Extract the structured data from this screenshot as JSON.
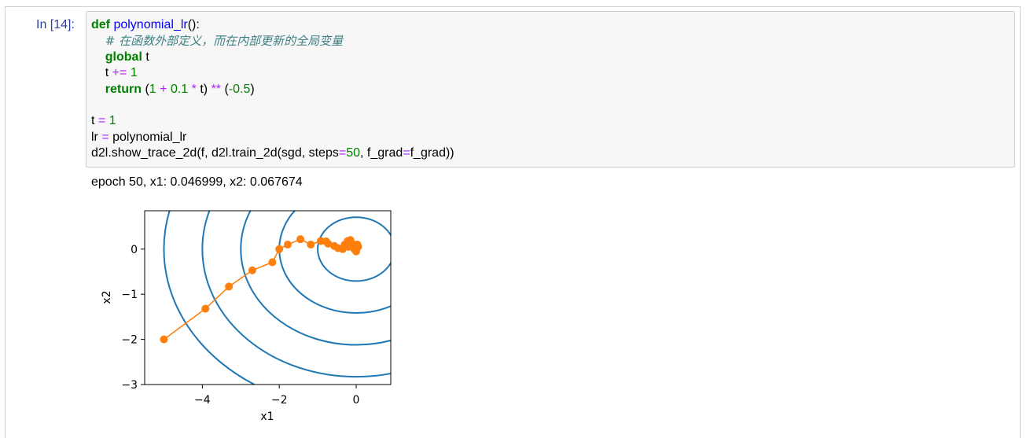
{
  "cell": {
    "prompt": "In [14]:",
    "code_lines": [
      [
        {
          "t": "def",
          "c": "kw"
        },
        {
          "t": " "
        },
        {
          "t": "polynomial_lr",
          "c": "fn"
        },
        {
          "t": "():"
        }
      ],
      [
        {
          "t": "    "
        },
        {
          "t": "# 在函数外部定义，而在内部更新的全局变量",
          "c": "cm"
        }
      ],
      [
        {
          "t": "    "
        },
        {
          "t": "global",
          "c": "kw"
        },
        {
          "t": " t"
        }
      ],
      [
        {
          "t": "    t "
        },
        {
          "t": "+=",
          "c": "op"
        },
        {
          "t": " "
        },
        {
          "t": "1",
          "c": "num"
        }
      ],
      [
        {
          "t": "    "
        },
        {
          "t": "return",
          "c": "kw"
        },
        {
          "t": " ("
        },
        {
          "t": "1",
          "c": "num"
        },
        {
          "t": " "
        },
        {
          "t": "+",
          "c": "op"
        },
        {
          "t": " "
        },
        {
          "t": "0.1",
          "c": "num"
        },
        {
          "t": " "
        },
        {
          "t": "*",
          "c": "op"
        },
        {
          "t": " t) "
        },
        {
          "t": "**",
          "c": "op"
        },
        {
          "t": " ("
        },
        {
          "t": "-0.5",
          "c": "num"
        },
        {
          "t": ")"
        }
      ],
      [],
      [
        {
          "t": "t "
        },
        {
          "t": "=",
          "c": "op"
        },
        {
          "t": " "
        },
        {
          "t": "1",
          "c": "num"
        }
      ],
      [
        {
          "t": "lr "
        },
        {
          "t": "=",
          "c": "op"
        },
        {
          "t": " polynomial_lr"
        }
      ],
      [
        {
          "t": "d2l.show_trace_2d(f, d2l.train_2d(sgd, steps"
        },
        {
          "t": "=",
          "c": "op"
        },
        {
          "t": "50",
          "c": "num"
        },
        {
          "t": ", f_grad"
        },
        {
          "t": "=",
          "c": "op"
        },
        {
          "t": "f_grad))"
        }
      ]
    ]
  },
  "output": {
    "text": "epoch 50, x1: 0.046999, x2: 0.067674"
  },
  "chart_data": {
    "type": "scatter",
    "title": "",
    "xlabel": "x1",
    "ylabel": "x2",
    "xlim": [
      -5.5,
      0.9
    ],
    "ylim": [
      -3.0,
      0.85
    ],
    "xticks": [
      -4,
      -2,
      0
    ],
    "yticks": [
      -3,
      -2,
      -1,
      0
    ],
    "xtick_labels": [
      "−4",
      "−2",
      "0"
    ],
    "ytick_labels": [
      "−3",
      "−2",
      "−1",
      "0"
    ],
    "contour": {
      "function": "x1^2 + 2*x2^2",
      "levels": [
        1,
        4,
        9,
        16,
        25
      ],
      "color": "#1f77b4"
    },
    "series": [
      {
        "color": "#ff7f0e",
        "x": [
          -5.0,
          -3.92,
          -3.31,
          -2.7,
          -2.18,
          -2.0,
          -1.78,
          -1.45,
          -1.18,
          -0.92,
          -0.78,
          -0.73,
          -0.57,
          -0.47,
          -0.35,
          -0.3,
          -0.22,
          -0.2,
          -0.15,
          -0.1,
          -0.05,
          0.0,
          0.03,
          0.05,
          0.047
        ],
        "y": [
          -2.0,
          -1.32,
          -0.83,
          -0.47,
          -0.29,
          0.0,
          0.1,
          0.22,
          0.1,
          0.18,
          0.17,
          0.12,
          0.07,
          0.02,
          0.0,
          0.1,
          0.18,
          0.05,
          0.2,
          0.12,
          0.0,
          -0.05,
          0.1,
          0.05,
          0.068
        ]
      }
    ]
  }
}
